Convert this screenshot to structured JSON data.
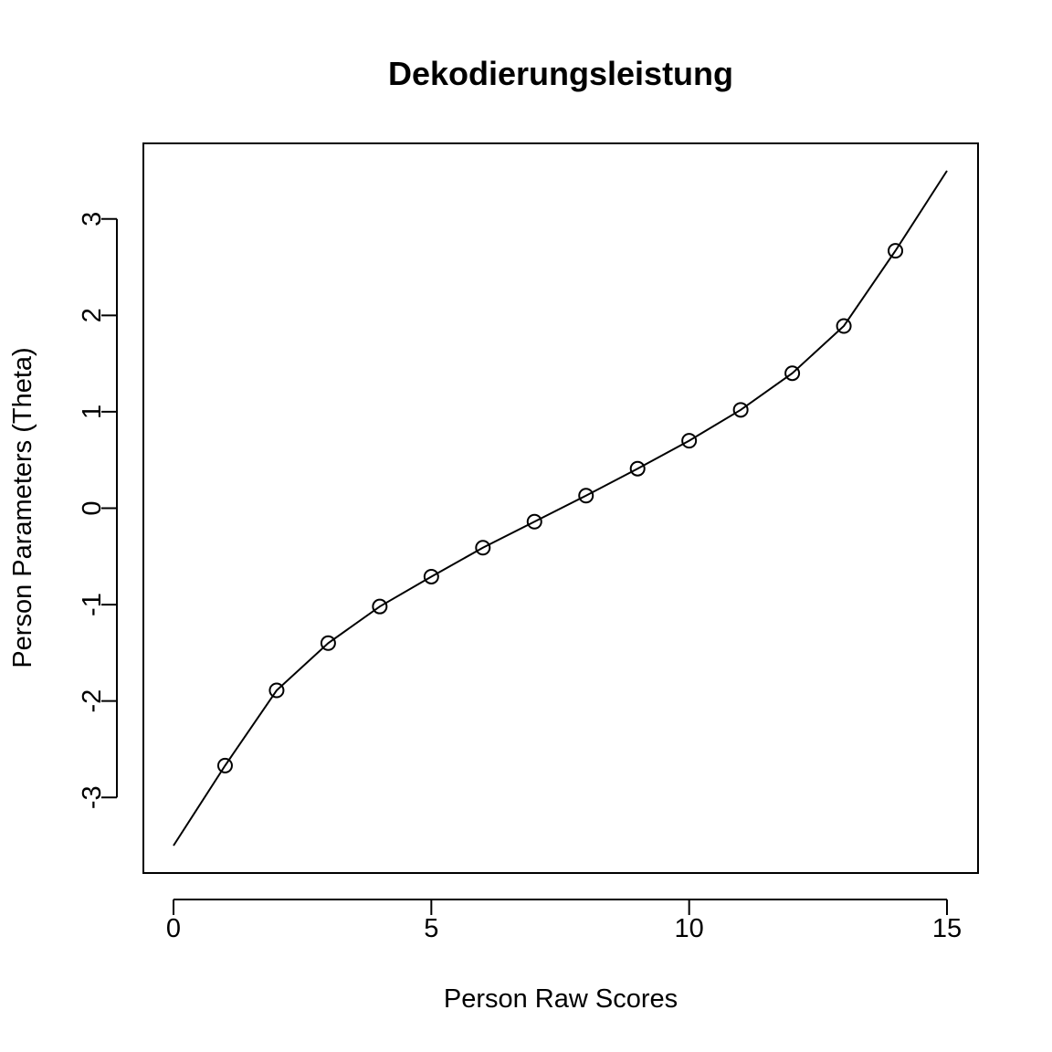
{
  "chart_data": {
    "type": "line",
    "title": "Dekodierungsleistung",
    "xlabel": "Person Raw Scores",
    "ylabel": "Person Parameters (Theta)",
    "xlim": [
      0,
      15
    ],
    "ylim": [
      -3.5,
      3.5
    ],
    "x_ticks": [
      0,
      5,
      10,
      15
    ],
    "y_ticks": [
      -3,
      -2,
      -1,
      0,
      1,
      2,
      3
    ],
    "grid": false,
    "series": [
      {
        "style": "line",
        "color": "#000000",
        "x": [
          0,
          1,
          2,
          3,
          4,
          5,
          6,
          7,
          8,
          9,
          10,
          11,
          12,
          13,
          14,
          15
        ],
        "y": [
          -3.5,
          -2.67,
          -1.89,
          -1.4,
          -1.02,
          -0.71,
          -0.41,
          -0.14,
          0.13,
          0.41,
          0.7,
          1.02,
          1.4,
          1.89,
          2.67,
          3.5
        ]
      },
      {
        "style": "points",
        "marker": "open-circle",
        "color": "#000000",
        "x": [
          1,
          2,
          3,
          4,
          5,
          6,
          7,
          8,
          9,
          10,
          11,
          12,
          13,
          14
        ],
        "y": [
          -2.67,
          -1.89,
          -1.4,
          -1.02,
          -0.71,
          -0.41,
          -0.14,
          0.13,
          0.41,
          0.7,
          1.02,
          1.4,
          1.89,
          2.67
        ]
      }
    ]
  }
}
